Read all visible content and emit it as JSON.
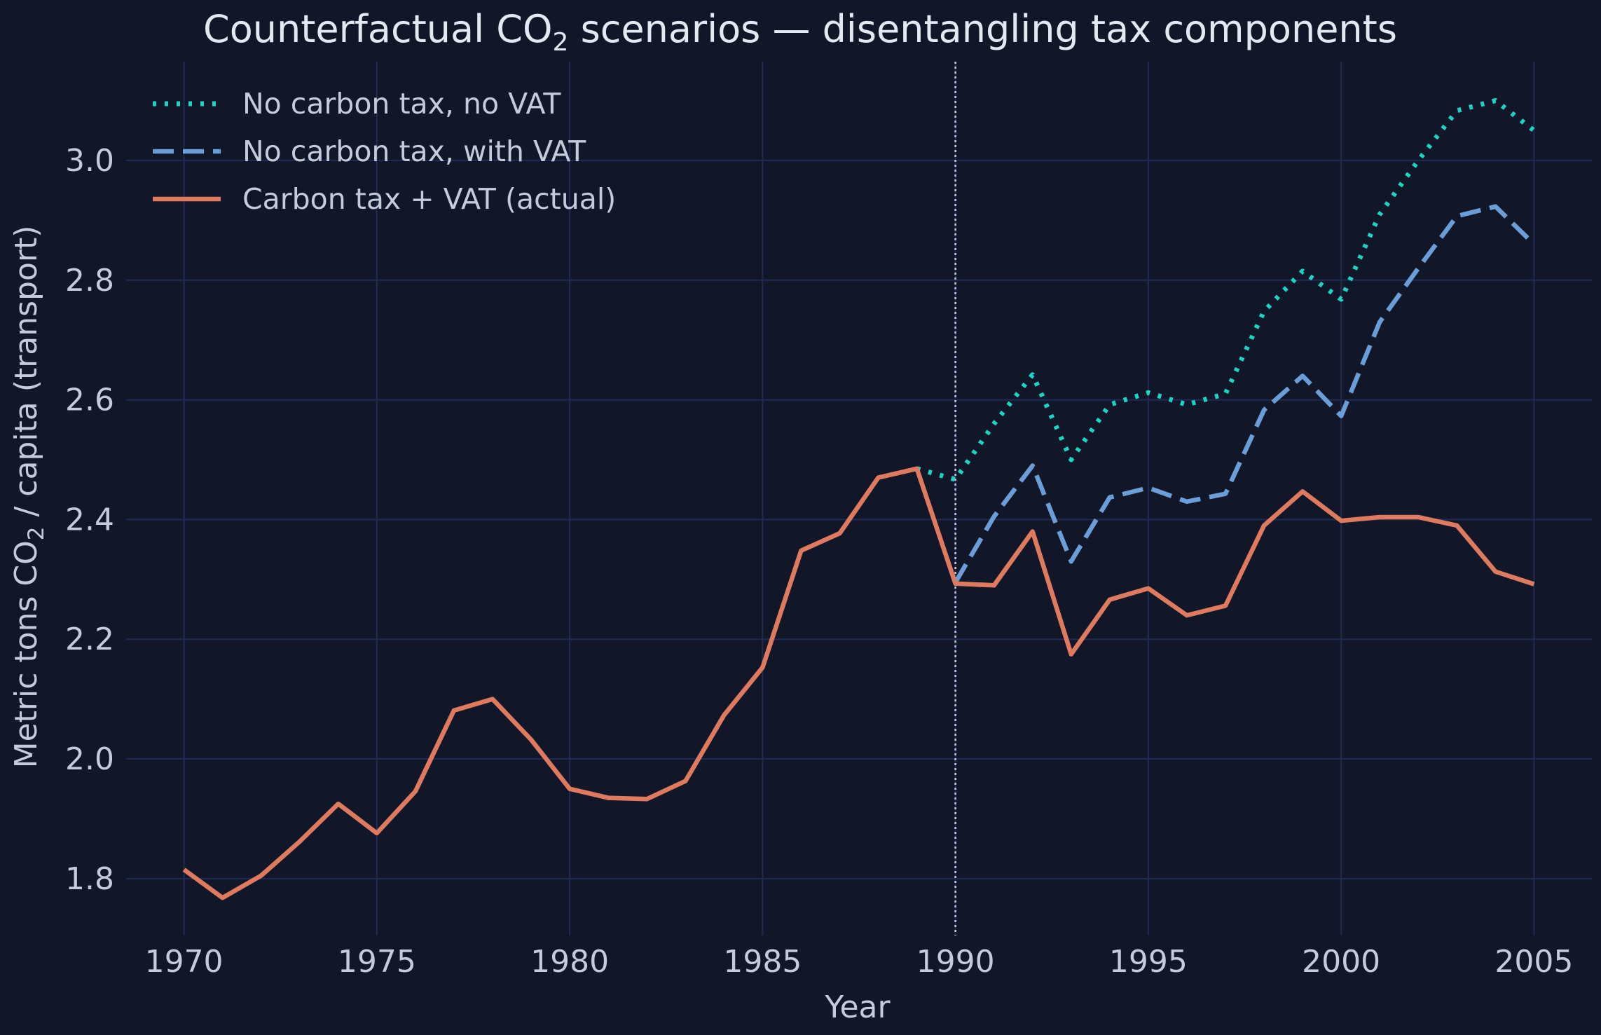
{
  "chart_data": {
    "type": "line",
    "title": "Counterfactual CO",
    "title_sub": "2",
    "title_rest": " scenarios — disentangling tax components",
    "xlabel": "Year",
    "ylabel_pre": "Metric tons CO",
    "ylabel_sub": "2",
    "ylabel_post": " / capita (transport)",
    "xlim": [
      1968.5,
      2006.5
    ],
    "ylim": [
      1.705,
      3.165
    ],
    "xticks": [
      1970,
      1975,
      1980,
      1985,
      1990,
      1995,
      2000,
      2005
    ],
    "yticks": [
      "1.8",
      "2.0",
      "2.2",
      "2.4",
      "2.6",
      "2.8",
      "3.0"
    ],
    "grid": true,
    "legend_position": "top-left",
    "vline_x": 1990,
    "series": [
      {
        "name": "No carbon tax, no VAT",
        "color": "#19d6c4",
        "style": "dotted",
        "x": [
          1989,
          1990,
          1991,
          1992,
          1993,
          1994,
          1995,
          1996,
          1997,
          1998,
          1999,
          2000,
          2001,
          2002,
          2003,
          2004,
          2005
        ],
        "y": [
          2.485,
          2.467,
          2.56,
          2.642,
          2.5,
          2.592,
          2.612,
          2.592,
          2.61,
          2.748,
          2.815,
          2.768,
          2.91,
          3.0,
          3.083,
          3.1,
          3.05
        ]
      },
      {
        "name": "No carbon tax, with VAT",
        "color": "#6b9ed8",
        "style": "dashed",
        "x": [
          1990,
          1991,
          1992,
          1993,
          1994,
          1995,
          1996,
          1997,
          1998,
          1999,
          2000,
          2001,
          2002,
          2003,
          2004,
          2005
        ],
        "y": [
          2.295,
          2.405,
          2.49,
          2.33,
          2.437,
          2.453,
          2.43,
          2.443,
          2.583,
          2.64,
          2.573,
          2.73,
          2.82,
          2.907,
          2.923,
          2.86
        ]
      },
      {
        "name": "Carbon tax + VAT (actual)",
        "color": "#e07a5f",
        "style": "solid",
        "x": [
          1970,
          1971,
          1972,
          1973,
          1974,
          1975,
          1976,
          1977,
          1978,
          1979,
          1980,
          1981,
          1982,
          1983,
          1984,
          1985,
          1986,
          1987,
          1988,
          1989,
          1990,
          1991,
          1992,
          1993,
          1994,
          1995,
          1996,
          1997,
          1998,
          1999,
          2000,
          2001,
          2002,
          2003,
          2004,
          2005
        ],
        "y": [
          1.815,
          1.768,
          1.805,
          1.862,
          1.925,
          1.876,
          1.946,
          2.081,
          2.1,
          2.032,
          1.95,
          1.935,
          1.933,
          1.963,
          2.073,
          2.153,
          2.348,
          2.377,
          2.47,
          2.485,
          2.293,
          2.29,
          2.38,
          2.175,
          2.266,
          2.285,
          2.24,
          2.256,
          2.39,
          2.447,
          2.398,
          2.404,
          2.404,
          2.39,
          2.313,
          2.292
        ]
      }
    ]
  }
}
